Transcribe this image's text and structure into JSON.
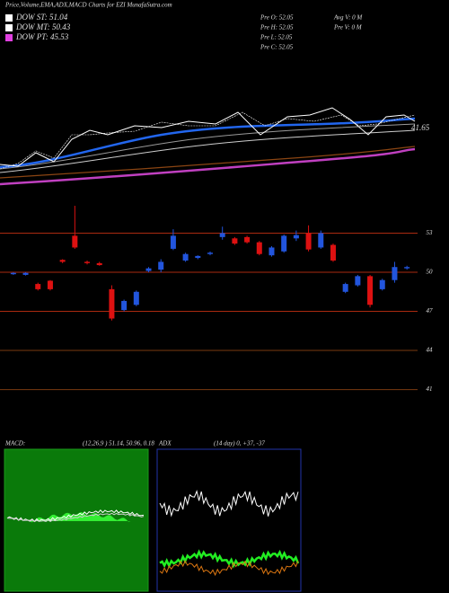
{
  "header": {
    "title": "Price,Volume,EMA,ADX,MACD Charts for EZI MunafaSutra.com"
  },
  "legend": [
    {
      "label": "DOW ST: 51.04",
      "color": "#ffffff"
    },
    {
      "label": "DOW MT: 50.43",
      "color": "#ffffff"
    },
    {
      "label": "DOW PT: 45.53",
      "color": "#e040e0"
    }
  ],
  "price_info": [
    "Pre  O: 52.05",
    "Pre  H: 52.05",
    "Pre  L: 52.05",
    "Pre  C: 52.05"
  ],
  "volume_info": [
    "Avg V: 0  M",
    "Pre  V: 0  M"
  ],
  "top_panel": {
    "last_label": "41.65"
  },
  "chart_data": {
    "type": "candlestick",
    "open": [
      49.85,
      49.8,
      49.1,
      49.35,
      50.95,
      52.8,
      50.8,
      50.7,
      48.7,
      47.1,
      47.5,
      50.1,
      50.2,
      51.8,
      50.9,
      51.1,
      51.4,
      52.7,
      52.6,
      52.7,
      52.3,
      51.3,
      51.6,
      52.6,
      53,
      51.9,
      52.1,
      48.5,
      49,
      49.7,
      48.7,
      49.4,
      50.3
    ],
    "high": [
      50,
      50,
      49.2,
      49.4,
      51,
      55.1,
      50.9,
      50.8,
      49,
      47.9,
      48.6,
      50.4,
      51,
      53.3,
      51.5,
      51.3,
      51.6,
      53.5,
      52.7,
      52.8,
      52.4,
      52,
      52.9,
      53.2,
      53.6,
      53.2,
      52.2,
      49.2,
      49.8,
      49.8,
      49.5,
      50.8,
      50.5
    ],
    "low": [
      49.8,
      49.75,
      48.6,
      48.6,
      50.7,
      51.8,
      50.6,
      50.5,
      46.3,
      47,
      47.4,
      50,
      50,
      51.7,
      50.8,
      51,
      51.3,
      52.5,
      52.1,
      52.2,
      51.3,
      51.2,
      51.5,
      52.4,
      51.6,
      51.8,
      50.8,
      48.4,
      48.9,
      47.3,
      48.6,
      49.2,
      50.2
    ],
    "close": [
      49.95,
      49.95,
      48.7,
      48.7,
      50.8,
      51.9,
      50.7,
      50.55,
      46.45,
      47.8,
      48.5,
      50.3,
      50.8,
      52.8,
      51.4,
      51.25,
      51.5,
      53,
      52.2,
      52.3,
      51.4,
      51.9,
      52.8,
      52.85,
      51.75,
      53,
      50.9,
      49.1,
      49.7,
      47.5,
      49.4,
      50.4,
      50.4
    ],
    "up_color": "#2255dd",
    "down_color": "#dd1111",
    "ylim": [
      37.8,
      54
    ],
    "yticks": [
      53,
      50,
      47,
      44,
      41
    ]
  },
  "macd": {
    "title": "MACD:",
    "params": "(12,26,9 ) 51.14, 50.96, 0.18"
  },
  "adx": {
    "title": "ADX",
    "params": "(14  day) 0, +37, -37"
  }
}
